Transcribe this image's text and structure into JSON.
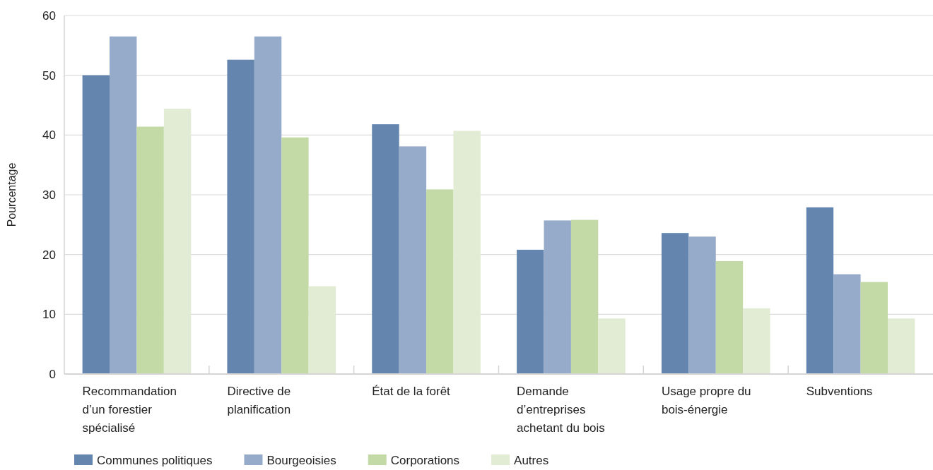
{
  "chart_data": {
    "type": "bar",
    "ylabel": "Pourcentage",
    "categories": [
      "Recommandation d’un forestier spécialisé",
      "Directive de planification",
      "État de la forêt",
      "Demande d’entreprises achetant du bois",
      "Usage propre du bois-énergie",
      "Subventions"
    ],
    "series": [
      {
        "name": "Communes politiques",
        "color": "#6486ae",
        "values": [
          50.0,
          52.6,
          41.8,
          20.8,
          23.6,
          27.9
        ]
      },
      {
        "name": "Bourgeoisies",
        "color": "#96abc9",
        "values": [
          56.5,
          56.5,
          38.1,
          25.7,
          23.0,
          16.7
        ]
      },
      {
        "name": "Corporations",
        "color": "#c4daa6",
        "values": [
          41.4,
          39.6,
          30.9,
          25.8,
          18.9,
          15.4
        ]
      },
      {
        "name": "Autres",
        "color": "#e2ecd5",
        "values": [
          44.4,
          14.7,
          40.7,
          9.3,
          11.0,
          9.3
        ]
      }
    ],
    "ylim": [
      0,
      60
    ],
    "yticks": [
      0,
      10,
      20,
      30,
      40,
      50,
      60
    ],
    "grid": "y",
    "legend": "bottom"
  }
}
